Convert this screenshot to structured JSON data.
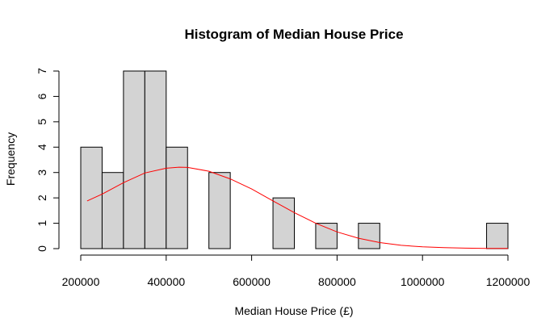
{
  "chart_data": {
    "type": "bar",
    "title": "Histogram of Median House Price",
    "xlabel": "Median House Price (£)",
    "ylabel": "Frequency",
    "xlim": [
      200000,
      1200000
    ],
    "ylim": [
      0,
      7
    ],
    "bin_width": 50000,
    "bins": [
      {
        "start": 200000,
        "end": 250000,
        "count": 4
      },
      {
        "start": 250000,
        "end": 300000,
        "count": 3
      },
      {
        "start": 300000,
        "end": 350000,
        "count": 7
      },
      {
        "start": 350000,
        "end": 400000,
        "count": 7
      },
      {
        "start": 400000,
        "end": 450000,
        "count": 4
      },
      {
        "start": 450000,
        "end": 500000,
        "count": 0
      },
      {
        "start": 500000,
        "end": 550000,
        "count": 3
      },
      {
        "start": 550000,
        "end": 600000,
        "count": 0
      },
      {
        "start": 600000,
        "end": 650000,
        "count": 0
      },
      {
        "start": 650000,
        "end": 700000,
        "count": 2
      },
      {
        "start": 700000,
        "end": 750000,
        "count": 0
      },
      {
        "start": 750000,
        "end": 800000,
        "count": 1
      },
      {
        "start": 800000,
        "end": 850000,
        "count": 0
      },
      {
        "start": 850000,
        "end": 900000,
        "count": 1
      },
      {
        "start": 900000,
        "end": 950000,
        "count": 0
      },
      {
        "start": 950000,
        "end": 1000000,
        "count": 0
      },
      {
        "start": 1000000,
        "end": 1050000,
        "count": 0
      },
      {
        "start": 1050000,
        "end": 1100000,
        "count": 0
      },
      {
        "start": 1100000,
        "end": 1150000,
        "count": 0
      },
      {
        "start": 1150000,
        "end": 1200000,
        "count": 1
      }
    ],
    "x_ticks": [
      200000,
      400000,
      600000,
      800000,
      1000000,
      1200000
    ],
    "x_tick_labels": [
      "200000",
      "400000",
      "600000",
      "800000",
      "1000000",
      "1200000"
    ],
    "y_ticks": [
      0,
      1,
      2,
      3,
      4,
      5,
      6,
      7
    ],
    "y_tick_labels": [
      "0",
      "1",
      "2",
      "3",
      "4",
      "5",
      "6",
      "7"
    ],
    "density_curve": {
      "x": [
        215000,
        250000,
        300000,
        350000,
        400000,
        430000,
        450000,
        500000,
        550000,
        600000,
        650000,
        700000,
        750000,
        800000,
        850000,
        900000,
        950000,
        1000000,
        1050000,
        1100000,
        1150000,
        1200000
      ],
      "y": [
        1.88,
        2.15,
        2.6,
        2.98,
        3.17,
        3.21,
        3.2,
        3.05,
        2.75,
        2.35,
        1.88,
        1.42,
        1.0,
        0.66,
        0.41,
        0.24,
        0.13,
        0.07,
        0.04,
        0.02,
        0.01,
        0.01
      ]
    },
    "bar_fill": "#d3d3d3",
    "bar_stroke": "#000000",
    "curve_color": "#ff0000",
    "grid": false
  }
}
